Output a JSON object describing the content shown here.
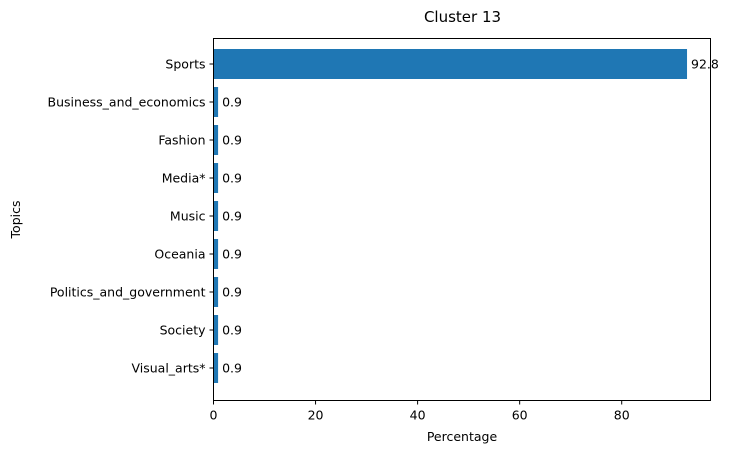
{
  "chart_data": {
    "type": "bar",
    "orientation": "horizontal",
    "title": "Cluster 13",
    "xlabel": "Percentage",
    "ylabel": "Topics",
    "categories": [
      "Sports",
      "Business_and_economics",
      "Fashion",
      "Media*",
      "Music",
      "Oceania",
      "Politics_and_government",
      "Society",
      "Visual_arts*"
    ],
    "values": [
      92.8,
      0.9,
      0.9,
      0.9,
      0.9,
      0.9,
      0.9,
      0.9,
      0.9
    ],
    "data_labels": [
      "92.8",
      "0.9",
      "0.9",
      "0.9",
      "0.9",
      "0.9",
      "0.9",
      "0.9",
      "0.9"
    ],
    "xlim": [
      0,
      97.4
    ],
    "xticks": [
      0,
      20,
      40,
      60,
      80
    ],
    "grid": false,
    "bar_color": "#1f77b4"
  }
}
